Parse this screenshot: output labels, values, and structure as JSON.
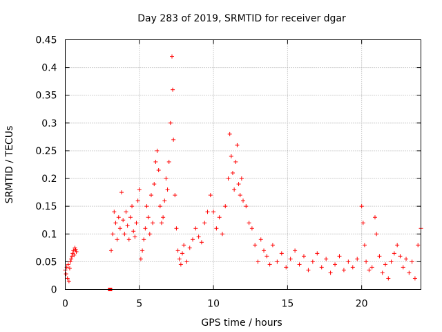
{
  "chart_data": {
    "type": "scatter",
    "title": "Day 283 of 2019, SRMTID for receiver dgar",
    "xlabel": "GPS time / hours",
    "ylabel": "SRMTID / TECUs",
    "xlim": [
      0,
      24
    ],
    "ylim": [
      0,
      0.45
    ],
    "xticks": [
      0,
      5,
      10,
      15,
      20
    ],
    "xtick_labels": [
      "0",
      "5",
      "10",
      "15",
      "20"
    ],
    "yticks": [
      0,
      0.05,
      0.1,
      0.15,
      0.2,
      0.25,
      0.3,
      0.35,
      0.4,
      0.45
    ],
    "ytick_labels": [
      "0",
      "0.05",
      "0.1",
      "0.15",
      "0.2",
      "0.25",
      "0.3",
      "0.35",
      "0.4",
      "0.45"
    ],
    "grid": true,
    "marker": "+",
    "color": "#ff0000",
    "series": [
      {
        "name": "SRMTID",
        "points": [
          [
            0.0,
            0.035
          ],
          [
            0.05,
            0.028
          ],
          [
            0.1,
            0.04
          ],
          [
            0.15,
            0.02
          ],
          [
            0.2,
            0.045
          ],
          [
            0.25,
            0.015
          ],
          [
            0.3,
            0.038
          ],
          [
            0.35,
            0.05
          ],
          [
            0.4,
            0.055
          ],
          [
            0.45,
            0.06
          ],
          [
            0.5,
            0.065
          ],
          [
            0.55,
            0.07
          ],
          [
            0.6,
            0.062
          ],
          [
            0.65,
            0.075
          ],
          [
            0.7,
            0.072
          ],
          [
            0.75,
            0.068
          ],
          [
            3.0,
            0.0
          ],
          [
            3.05,
            0.0
          ],
          [
            3.1,
            0.07
          ],
          [
            3.2,
            0.1
          ],
          [
            3.3,
            0.14
          ],
          [
            3.4,
            0.12
          ],
          [
            3.5,
            0.09
          ],
          [
            3.6,
            0.13
          ],
          [
            3.7,
            0.11
          ],
          [
            3.8,
            0.175
          ],
          [
            3.9,
            0.125
          ],
          [
            4.0,
            0.1
          ],
          [
            4.1,
            0.14
          ],
          [
            4.2,
            0.115
          ],
          [
            4.3,
            0.09
          ],
          [
            4.4,
            0.13
          ],
          [
            4.5,
            0.15
          ],
          [
            4.6,
            0.105
          ],
          [
            4.7,
            0.095
          ],
          [
            4.8,
            0.12
          ],
          [
            4.9,
            0.16
          ],
          [
            5.0,
            0.18
          ],
          [
            5.1,
            0.055
          ],
          [
            5.2,
            0.07
          ],
          [
            5.3,
            0.09
          ],
          [
            5.4,
            0.11
          ],
          [
            5.5,
            0.15
          ],
          [
            5.6,
            0.13
          ],
          [
            5.7,
            0.1
          ],
          [
            5.8,
            0.17
          ],
          [
            5.9,
            0.12
          ],
          [
            6.0,
            0.19
          ],
          [
            6.1,
            0.23
          ],
          [
            6.2,
            0.25
          ],
          [
            6.3,
            0.215
          ],
          [
            6.4,
            0.15
          ],
          [
            6.5,
            0.12
          ],
          [
            6.6,
            0.13
          ],
          [
            6.7,
            0.16
          ],
          [
            6.8,
            0.2
          ],
          [
            6.9,
            0.18
          ],
          [
            7.0,
            0.23
          ],
          [
            7.1,
            0.3
          ],
          [
            7.2,
            0.42
          ],
          [
            7.25,
            0.36
          ],
          [
            7.3,
            0.27
          ],
          [
            7.4,
            0.17
          ],
          [
            7.5,
            0.11
          ],
          [
            7.6,
            0.07
          ],
          [
            7.7,
            0.055
          ],
          [
            7.8,
            0.045
          ],
          [
            7.9,
            0.065
          ],
          [
            8.0,
            0.08
          ],
          [
            8.2,
            0.05
          ],
          [
            8.4,
            0.075
          ],
          [
            8.6,
            0.09
          ],
          [
            8.8,
            0.11
          ],
          [
            9.0,
            0.095
          ],
          [
            9.2,
            0.085
          ],
          [
            9.4,
            0.12
          ],
          [
            9.6,
            0.14
          ],
          [
            9.8,
            0.17
          ],
          [
            10.0,
            0.14
          ],
          [
            10.2,
            0.11
          ],
          [
            10.4,
            0.13
          ],
          [
            10.6,
            0.1
          ],
          [
            10.8,
            0.15
          ],
          [
            11.0,
            0.2
          ],
          [
            11.1,
            0.28
          ],
          [
            11.2,
            0.24
          ],
          [
            11.3,
            0.21
          ],
          [
            11.4,
            0.18
          ],
          [
            11.5,
            0.23
          ],
          [
            11.6,
            0.26
          ],
          [
            11.7,
            0.19
          ],
          [
            11.8,
            0.17
          ],
          [
            11.9,
            0.2
          ],
          [
            12.0,
            0.16
          ],
          [
            12.2,
            0.15
          ],
          [
            12.4,
            0.12
          ],
          [
            12.6,
            0.11
          ],
          [
            12.8,
            0.08
          ],
          [
            13.0,
            0.05
          ],
          [
            13.2,
            0.09
          ],
          [
            13.4,
            0.07
          ],
          [
            13.6,
            0.06
          ],
          [
            13.8,
            0.045
          ],
          [
            14.0,
            0.08
          ],
          [
            14.3,
            0.05
          ],
          [
            14.6,
            0.065
          ],
          [
            14.9,
            0.04
          ],
          [
            15.2,
            0.055
          ],
          [
            15.5,
            0.07
          ],
          [
            15.8,
            0.045
          ],
          [
            16.1,
            0.06
          ],
          [
            16.4,
            0.035
          ],
          [
            16.7,
            0.05
          ],
          [
            17.0,
            0.065
          ],
          [
            17.3,
            0.04
          ],
          [
            17.6,
            0.055
          ],
          [
            17.9,
            0.03
          ],
          [
            18.2,
            0.045
          ],
          [
            18.5,
            0.06
          ],
          [
            18.8,
            0.035
          ],
          [
            19.1,
            0.05
          ],
          [
            19.4,
            0.04
          ],
          [
            19.7,
            0.055
          ],
          [
            20.0,
            0.15
          ],
          [
            20.1,
            0.12
          ],
          [
            20.2,
            0.08
          ],
          [
            20.3,
            0.05
          ],
          [
            20.5,
            0.035
          ],
          [
            20.7,
            0.04
          ],
          [
            20.9,
            0.13
          ],
          [
            21.0,
            0.1
          ],
          [
            21.2,
            0.06
          ],
          [
            21.4,
            0.03
          ],
          [
            21.6,
            0.045
          ],
          [
            21.8,
            0.02
          ],
          [
            22.0,
            0.05
          ],
          [
            22.2,
            0.065
          ],
          [
            22.4,
            0.08
          ],
          [
            22.6,
            0.06
          ],
          [
            22.8,
            0.04
          ],
          [
            23.0,
            0.055
          ],
          [
            23.2,
            0.03
          ],
          [
            23.4,
            0.05
          ],
          [
            23.6,
            0.02
          ],
          [
            23.8,
            0.08
          ],
          [
            24.0,
            0.11
          ]
        ]
      }
    ]
  }
}
